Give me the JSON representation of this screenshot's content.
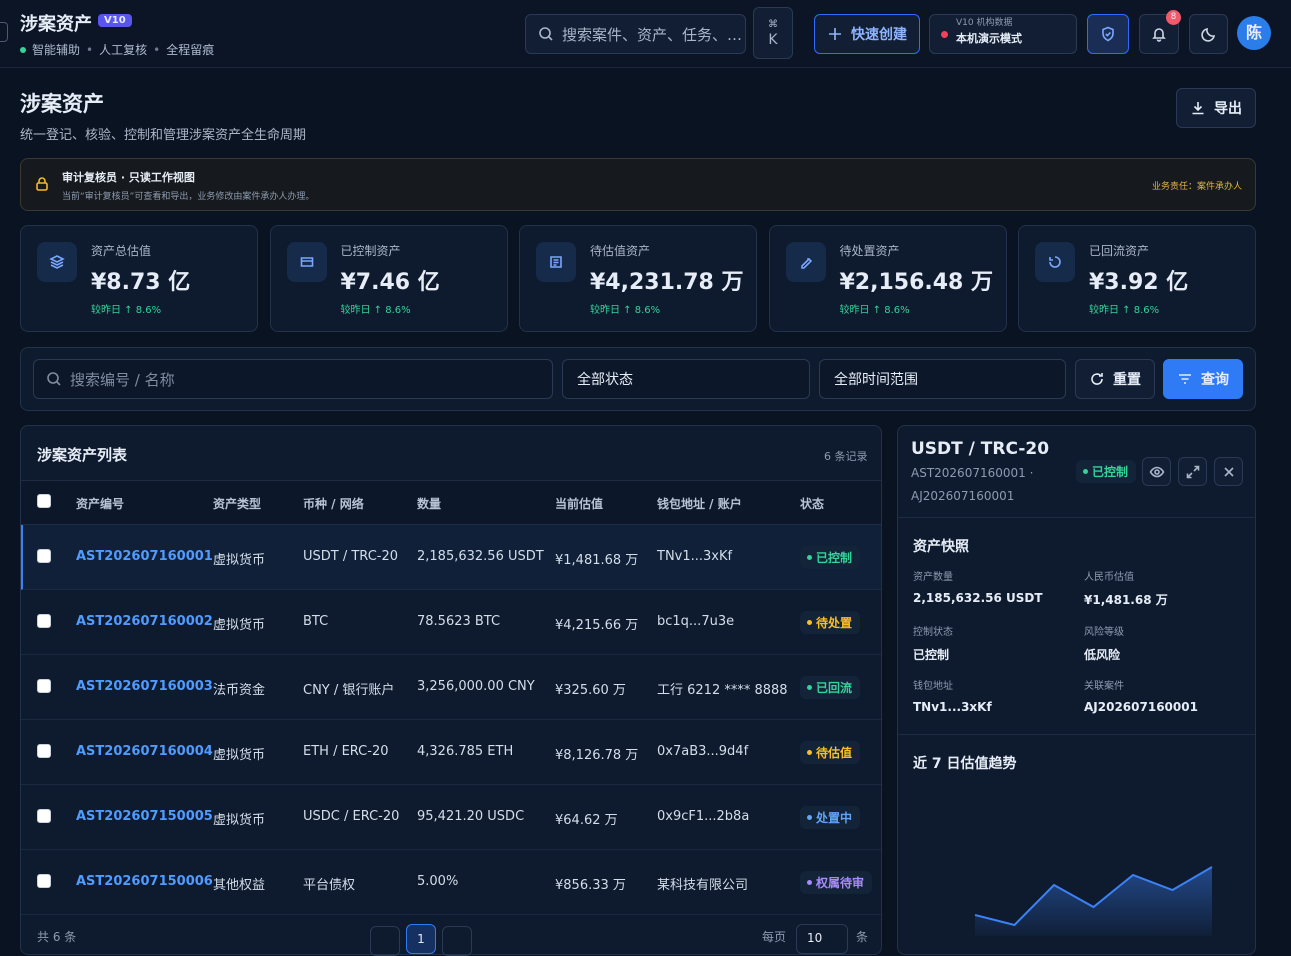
{
  "header": {
    "title": "涉案资产",
    "badge": "V10",
    "tags": [
      "智能辅助",
      "人工复核",
      "全程留痕"
    ],
    "search": "搜索案件、资产、任务、…",
    "kbd": [
      "⌘",
      "K"
    ],
    "create": "快速创建",
    "env": {
      "label": "V10 机构数据",
      "mode": "本机演示模式"
    },
    "notifications": "8",
    "avatar": "陈"
  },
  "page": {
    "title": "涉案资产",
    "subtitle": "统一登记、核验、控制和管理涉案资产全生命周期",
    "export": "导出"
  },
  "notice": {
    "title": "审计复核员 · 只读工作视图",
    "text": "当前“审计复核员”可查看和导出，业务修改由案件承办人办理。",
    "right": "业务责任：案件承办人"
  },
  "stats": [
    {
      "label": "资产总估值",
      "value": "¥8.73 亿",
      "change": "较昨日 ↑ 8.6%"
    },
    {
      "label": "已控制资产",
      "value": "¥7.46 亿",
      "change": "较昨日 ↑ 8.6%"
    },
    {
      "label": "待估值资产",
      "value": "¥4,231.78 万",
      "change": "较昨日 ↑ 8.6%"
    },
    {
      "label": "待处置资产",
      "value": "¥2,156.48 万",
      "change": "较昨日 ↑ 8.6%"
    },
    {
      "label": "已回流资产",
      "value": "¥3.92 亿",
      "change": "较昨日 ↑ 8.6%"
    }
  ],
  "filters": {
    "search": "搜索编号 / 名称",
    "status": "全部状态",
    "time": "全部时间范围",
    "reset": "重置",
    "query": "查询"
  },
  "table": {
    "title": "涉案资产列表",
    "count": "6 条记录",
    "columns": [
      "资产编号",
      "资产类型",
      "币种 / 网络",
      "数量",
      "当前估值",
      "钱包地址 / 账户",
      "状态"
    ],
    "rows": [
      {
        "cells": [
          "AST202607160001",
          "虚拟货币",
          "USDT / TRC-20",
          "2,185,632.56 USDT",
          "¥1,481.68 万",
          "TNv1...3xKf",
          "已控制"
        ],
        "statusColor": "#34d399"
      },
      {
        "cells": [
          "AST202607160002",
          "虚拟货币",
          "BTC",
          "78.5623 BTC",
          "¥4,215.66 万",
          "bc1q...7u3e",
          "待处置"
        ],
        "statusColor": "#fbbf24"
      },
      {
        "cells": [
          "AST202607160003",
          "法币资金",
          "CNY / 银行账户",
          "3,256,000.00 CNY",
          "¥325.60 万",
          "工行 6212 **** 8888",
          "已回流"
        ],
        "statusColor": "#34d399"
      },
      {
        "cells": [
          "AST202607160004",
          "虚拟货币",
          "ETH / ERC-20",
          "4,326.785 ETH",
          "¥8,126.78 万",
          "0x7aB3...9d4f",
          "待估值"
        ],
        "statusColor": "#fbbf24"
      },
      {
        "cells": [
          "AST202607150005",
          "虚拟货币",
          "USDC / ERC-20",
          "95,421.20 USDC",
          "¥64.62 万",
          "0x9cF1...2b8a",
          "处置中"
        ],
        "statusColor": "#60a5fa"
      },
      {
        "cells": [
          "AST202607150006",
          "其他权益",
          "平台债权",
          "5.00%",
          "¥856.33 万",
          "某科技有限公司",
          "权属待审"
        ],
        "statusColor": "#a78bfa"
      }
    ],
    "footer": {
      "total": "共 6 条",
      "page": "1",
      "perPage": "每页",
      "size": "10",
      "unit": "条"
    }
  },
  "detail": {
    "title": "USDT / TRC-20",
    "asset": "AST202607160001 ·",
    "case": "AJ202607160001",
    "status": "已控制",
    "section": "资产快照",
    "fields": [
      {
        "label": "资产数量",
        "value": "2,185,632.56 USDT"
      },
      {
        "label": "人民币估值",
        "value": "¥1,481.68 万"
      },
      {
        "label": "控制状态",
        "value": "已控制"
      },
      {
        "label": "风险等级",
        "value": "低风险"
      },
      {
        "label": "钱包地址",
        "value": "TNv1...3xKf"
      },
      {
        "label": "关联案件",
        "value": "AJ202607160001"
      }
    ],
    "trend": {
      "title": "近 7 日估值趋势",
      "values": [
        21,
        11,
        51,
        29,
        61,
        46,
        69
      ],
      "color": "#3b82f6"
    }
  }
}
